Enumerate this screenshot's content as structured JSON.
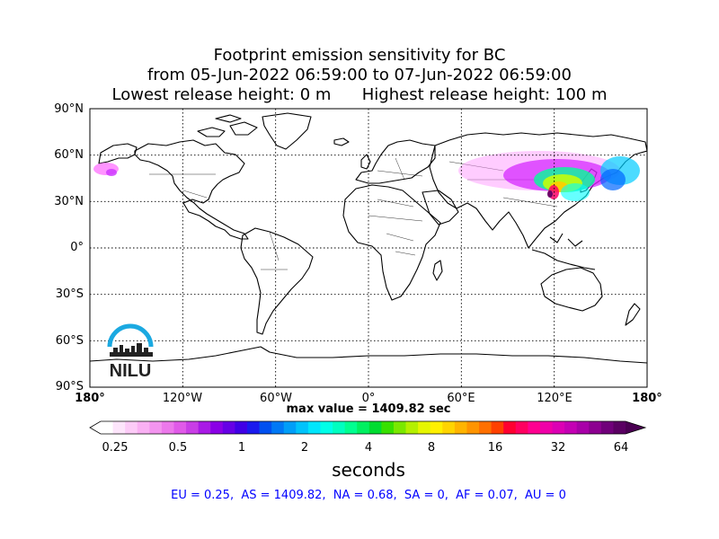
{
  "title": {
    "line1": "Footprint emission sensitivity for BC",
    "line2": "from 05-Jun-2022 06:59:00 to 07-Jun-2022 06:59:00",
    "line3": "Lowest release height: 0 m      Highest release height: 100 m"
  },
  "map": {
    "lat_labels": [
      "90°N",
      "60°N",
      "30°N",
      "0°",
      "30°S",
      "60°S",
      "90°S"
    ],
    "lon_labels": [
      "180°",
      "120°W",
      "60°W",
      "0°",
      "60°E",
      "120°E",
      "180°"
    ],
    "lat_lines": [
      60,
      30,
      0,
      -30,
      -60
    ],
    "lon_lines": [
      -120,
      -60,
      0,
      60,
      120
    ],
    "extent": {
      "lon": [
        -180,
        180
      ],
      "lat": [
        -90,
        90
      ]
    },
    "grid": true
  },
  "logo": {
    "text": "NILU",
    "color": "#1ba9e1"
  },
  "max_value_text": "max value = 1409.82 sec",
  "colorbar": {
    "ticks": [
      "0.25",
      "0.5",
      "1",
      "2",
      "4",
      "8",
      "16",
      "32",
      "64"
    ],
    "units": "seconds"
  },
  "summary": "EU = 0.25,  AS = 1409.82,  NA = 0.68,  SA = 0,  AF = 0.07,  AU = 0"
}
